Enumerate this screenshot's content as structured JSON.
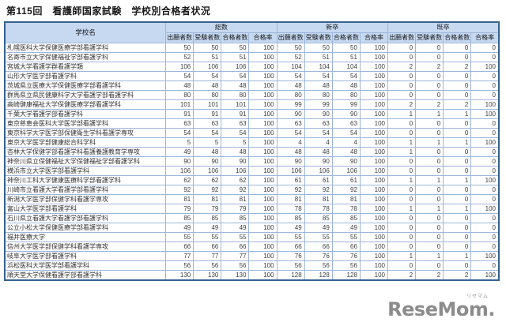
{
  "page": {
    "title": "第115回　看護師国家試験　学校別合格者状況"
  },
  "table": {
    "school_header": "学校名",
    "groups": [
      {
        "label": "総数"
      },
      {
        "label": "新卒"
      },
      {
        "label": "既卒"
      }
    ],
    "sub_headers": [
      "出願者数",
      "受験者数",
      "合格者数",
      "合格率"
    ],
    "rows": [
      {
        "school": "札幌医科大学保健医療学部看護学科",
        "values": [
          50,
          50,
          50,
          100,
          50,
          50,
          50,
          100,
          0,
          0,
          0,
          0
        ]
      },
      {
        "school": "名寄市立大学保健福祉学部看護学科",
        "values": [
          52,
          51,
          51,
          100,
          52,
          51,
          51,
          100,
          0,
          0,
          0,
          0
        ]
      },
      {
        "school": "宮城大学看護学群看護学類",
        "values": [
          106,
          106,
          106,
          100,
          104,
          104,
          104,
          100,
          2,
          2,
          2,
          100
        ]
      },
      {
        "school": "山形大学医学部看護学科",
        "values": [
          54,
          54,
          54,
          100,
          54,
          54,
          54,
          100,
          0,
          0,
          0,
          0
        ]
      },
      {
        "school": "茨城県立医療大学保健医療学部看護学科",
        "values": [
          48,
          48,
          48,
          100,
          48,
          48,
          48,
          100,
          0,
          0,
          0,
          0
        ]
      },
      {
        "school": "群馬県立県民健康科学大学看護学部看護学科",
        "values": [
          80,
          80,
          80,
          100,
          80,
          80,
          80,
          100,
          0,
          0,
          0,
          0
        ]
      },
      {
        "school": "高崎健康福祉大学保健医療学部看護学科",
        "values": [
          101,
          101,
          101,
          100,
          99,
          99,
          99,
          100,
          2,
          2,
          2,
          100
        ]
      },
      {
        "school": "千葉大学看護学部看護学科",
        "values": [
          91,
          91,
          91,
          100,
          90,
          90,
          90,
          100,
          1,
          1,
          1,
          100
        ]
      },
      {
        "school": "東京慈恵会医科大学医学部看護学科",
        "values": [
          63,
          63,
          63,
          100,
          63,
          63,
          63,
          100,
          0,
          0,
          0,
          0
        ]
      },
      {
        "school": "東京科学大学医学部保健衛生学科看護学専攻",
        "values": [
          54,
          54,
          54,
          100,
          54,
          54,
          54,
          100,
          0,
          0,
          0,
          0
        ]
      },
      {
        "school": "東京大学医学部健康総合科学科",
        "values": [
          5,
          5,
          5,
          100,
          4,
          4,
          4,
          100,
          1,
          1,
          1,
          100
        ]
      },
      {
        "school": "杏林大学保健学部看護学科看護養護教育学専攻",
        "values": [
          49,
          48,
          48,
          100,
          48,
          48,
          48,
          100,
          1,
          0,
          0,
          0
        ]
      },
      {
        "school": "神奈川県立保健福祉大学保健福祉学部看護学科",
        "values": [
          90,
          90,
          90,
          100,
          90,
          90,
          90,
          100,
          0,
          0,
          0,
          0
        ]
      },
      {
        "school": "横浜市立大学医学部看護学科",
        "values": [
          106,
          106,
          106,
          100,
          106,
          106,
          106,
          100,
          0,
          0,
          0,
          0
        ]
      },
      {
        "school": "神奈川工科大学健康医療科学部看護学科",
        "values": [
          62,
          62,
          62,
          100,
          61,
          61,
          61,
          100,
          1,
          1,
          1,
          100
        ]
      },
      {
        "school": "川崎市立看護大学看護学部看護学科",
        "values": [
          92,
          92,
          92,
          100,
          92,
          92,
          92,
          100,
          0,
          0,
          0,
          0
        ]
      },
      {
        "school": "新潟大学医学部保健学科看護学専攻",
        "values": [
          81,
          81,
          81,
          100,
          81,
          81,
          81,
          100,
          0,
          0,
          0,
          0
        ]
      },
      {
        "school": "富山大学医学部看護学科",
        "values": [
          79,
          79,
          79,
          100,
          78,
          78,
          78,
          100,
          1,
          1,
          1,
          100
        ]
      },
      {
        "school": "石川県立看護大学看護学部看護学科",
        "values": [
          85,
          85,
          85,
          100,
          85,
          85,
          85,
          100,
          0,
          0,
          0,
          0
        ]
      },
      {
        "school": "公立小松大学保健医療学部看護学科",
        "values": [
          49,
          49,
          49,
          100,
          49,
          49,
          49,
          100,
          0,
          0,
          0,
          0
        ]
      },
      {
        "school": "福井医療大学",
        "values": [
          55,
          55,
          55,
          100,
          55,
          55,
          55,
          100,
          0,
          0,
          0,
          0
        ]
      },
      {
        "school": "信州大学医学部保健学科看護学専攻",
        "values": [
          66,
          66,
          66,
          100,
          66,
          66,
          66,
          100,
          0,
          0,
          0,
          0
        ]
      },
      {
        "school": "岐阜大学医学部看護学科",
        "values": [
          77,
          77,
          77,
          100,
          76,
          76,
          76,
          100,
          1,
          1,
          1,
          100
        ]
      },
      {
        "school": "浜松医科大学医学部看護学科",
        "values": [
          56,
          56,
          56,
          100,
          56,
          56,
          56,
          100,
          0,
          0,
          0,
          0
        ]
      },
      {
        "school": "順天堂大学保健看護学部看護学科",
        "values": [
          130,
          130,
          130,
          100,
          128,
          128,
          128,
          100,
          2,
          2,
          2,
          100
        ]
      }
    ]
  },
  "logo": {
    "text": "ReseMom.",
    "ruby": "リセマム",
    "color": "#8c8c8c"
  },
  "colors": {
    "header_bg": "#c6d9f1",
    "grid_border": "#9db6d9",
    "outer_border": "#35618f"
  }
}
